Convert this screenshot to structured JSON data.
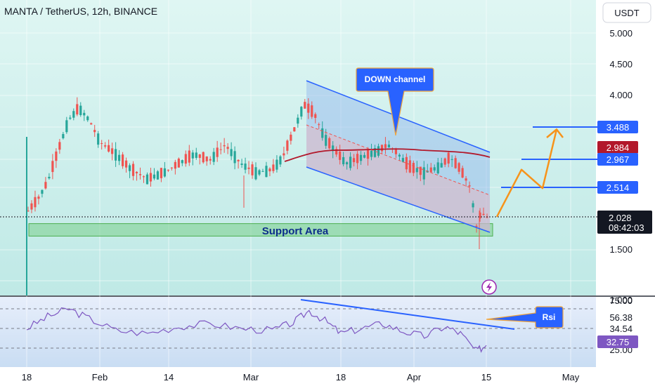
{
  "chart_data": {
    "type": "candlestick",
    "title": "MANTA / TetherUS, 12h, BINANCE",
    "currency_button": "USDT",
    "price_ticks": [
      "5.000",
      "4.500",
      "4.000",
      "1.500",
      "1.000"
    ],
    "x_ticks": [
      "18",
      "Feb",
      "14",
      "Mar",
      "18",
      "Apr",
      "15",
      "May"
    ],
    "badges": {
      "level_3488": "3.488",
      "ma_value": "2.984",
      "level_2967": "2.967",
      "level_2514": "2.514",
      "last_price": "2.028",
      "countdown": "08:42:03"
    },
    "annotations": {
      "down_channel": "DOWN channel",
      "support_area": "Support Area",
      "rsi_label": "Rsi"
    },
    "rsi_ticks": [
      "75.00",
      "56.38",
      "34.54",
      "32.75",
      "25.00"
    ],
    "price_series": [
      [
        "01-18",
        2.1
      ],
      [
        "01-20",
        2.3
      ],
      [
        "01-22",
        2.6
      ],
      [
        "01-24",
        3.1
      ],
      [
        "01-26",
        3.6
      ],
      [
        "01-28",
        3.8
      ],
      [
        "01-30",
        3.6
      ],
      [
        "02-01",
        3.25
      ],
      [
        "02-04",
        3.05
      ],
      [
        "02-07",
        2.8
      ],
      [
        "02-10",
        2.65
      ],
      [
        "02-13",
        2.75
      ],
      [
        "02-16",
        2.9
      ],
      [
        "02-19",
        3.05
      ],
      [
        "02-22",
        2.95
      ],
      [
        "02-25",
        3.2
      ],
      [
        "02-28",
        2.9
      ],
      [
        "03-02",
        2.75
      ],
      [
        "03-05",
        2.8
      ],
      [
        "03-07",
        3.0
      ],
      [
        "03-09",
        3.4
      ],
      [
        "03-11",
        3.85
      ],
      [
        "03-13",
        3.7
      ],
      [
        "03-15",
        3.3
      ],
      [
        "03-17",
        3.1
      ],
      [
        "03-19",
        2.9
      ],
      [
        "03-22",
        3.0
      ],
      [
        "03-25",
        3.1
      ],
      [
        "03-27",
        3.2
      ],
      [
        "03-29",
        3.05
      ],
      [
        "03-31",
        2.85
      ],
      [
        "04-03",
        2.75
      ],
      [
        "04-06",
        2.85
      ],
      [
        "04-08",
        3.0
      ],
      [
        "04-10",
        2.8
      ],
      [
        "04-12",
        2.5
      ],
      [
        "04-13",
        1.85
      ],
      [
        "04-14",
        2.1
      ],
      [
        "04-15",
        2.03
      ]
    ],
    "down_channel_label": "DOWN channel",
    "support_zone": [
      1.72,
      1.92
    ],
    "projected_path": [
      2.03,
      2.8,
      2.5,
      3.45
    ],
    "rsi_series": [
      [
        "01-18",
        50
      ],
      [
        "01-22",
        62
      ],
      [
        "01-26",
        70
      ],
      [
        "01-30",
        60
      ],
      [
        "02-04",
        48
      ],
      [
        "02-10",
        45
      ],
      [
        "02-16",
        52
      ],
      [
        "02-22",
        55
      ],
      [
        "02-28",
        50
      ],
      [
        "03-05",
        48
      ],
      [
        "03-09",
        56
      ],
      [
        "03-12",
        68
      ],
      [
        "03-15",
        58
      ],
      [
        "03-18",
        45
      ],
      [
        "03-22",
        50
      ],
      [
        "03-26",
        55
      ],
      [
        "03-30",
        47
      ],
      [
        "04-03",
        42
      ],
      [
        "04-07",
        52
      ],
      [
        "04-10",
        45
      ],
      [
        "04-13",
        27
      ],
      [
        "04-15",
        32.75
      ]
    ],
    "rsi_levels": [
      70,
      50,
      30
    ],
    "grid": true
  }
}
